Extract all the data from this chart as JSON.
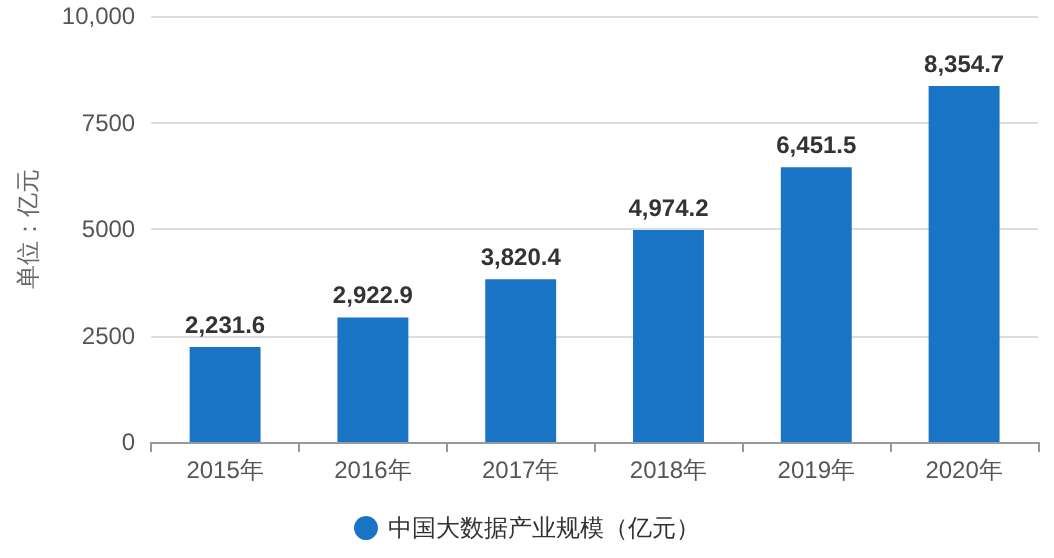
{
  "chart_data": {
    "type": "bar",
    "ylabel": "单位：亿元",
    "categories": [
      "2015年",
      "2016年",
      "2017年",
      "2018年",
      "2019年",
      "2020年"
    ],
    "series": [
      {
        "name": "中国大数据产业规模（亿元）",
        "color": "#1a74c6",
        "values": [
          2231.6,
          2922.9,
          3820.4,
          4974.2,
          6451.5,
          8354.7
        ],
        "value_labels": [
          "2,231.6",
          "2,922.9",
          "3,820.4",
          "4,974.2",
          "6,451.5",
          "8,354.7"
        ]
      }
    ],
    "ylim": [
      0,
      10000
    ],
    "yticks": [
      0,
      2500,
      5000,
      7500,
      {
        "value": 10000,
        "label": "10,000"
      }
    ],
    "grid": "y",
    "legend": "bottom"
  }
}
